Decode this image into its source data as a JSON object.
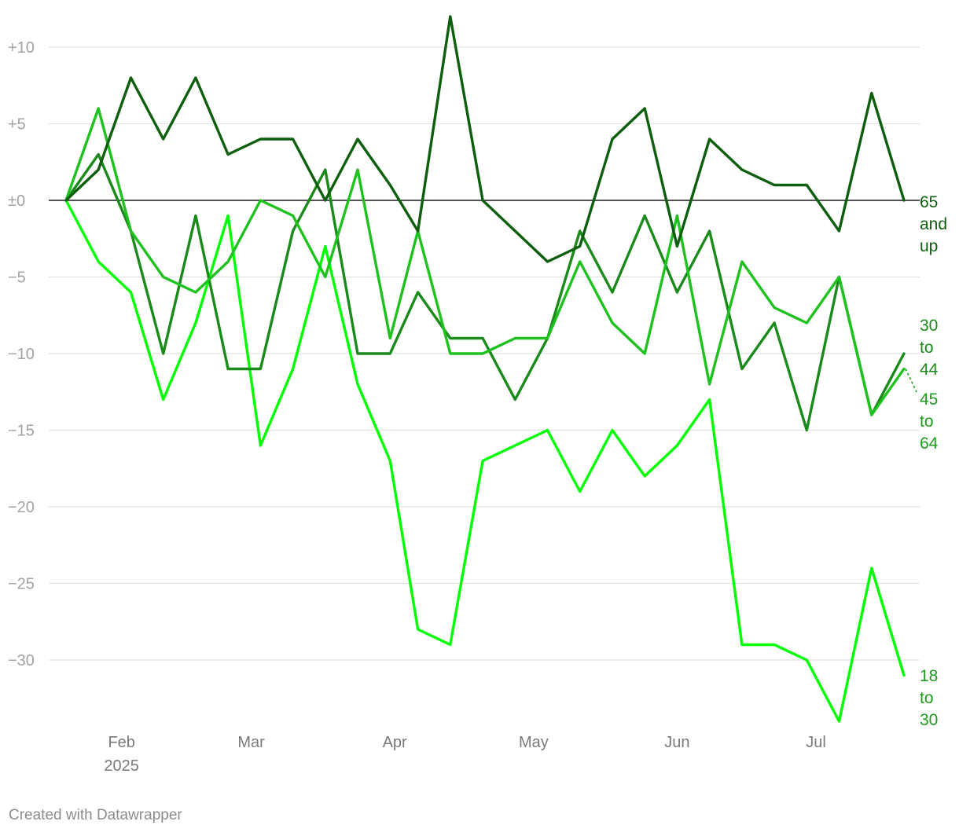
{
  "chart_data": {
    "type": "line",
    "title": "",
    "xlabel": "",
    "ylabel": "",
    "ylim": [
      -34,
      12
    ],
    "y_ticks": [
      {
        "value": 10,
        "label": "+10"
      },
      {
        "value": 5,
        "label": "+5"
      },
      {
        "value": 0,
        "label": "±0"
      },
      {
        "value": -5,
        "label": "−5"
      },
      {
        "value": -10,
        "label": "−10"
      },
      {
        "value": -15,
        "label": "−15"
      },
      {
        "value": -20,
        "label": "−20"
      },
      {
        "value": -25,
        "label": "−25"
      },
      {
        "value": -30,
        "label": "−30"
      }
    ],
    "x_ticks": [
      {
        "date": "2025-02-01",
        "label": "Feb",
        "sublabel": "2025"
      },
      {
        "date": "2025-03-01",
        "label": "Mar",
        "sublabel": ""
      },
      {
        "date": "2025-04-01",
        "label": "Apr",
        "sublabel": ""
      },
      {
        "date": "2025-05-01",
        "label": "May",
        "sublabel": ""
      },
      {
        "date": "2025-06-01",
        "label": "Jun",
        "sublabel": ""
      },
      {
        "date": "2025-07-01",
        "label": "Jul",
        "sublabel": ""
      }
    ],
    "xlim": [
      "2025-01-20",
      "2025-07-20"
    ],
    "x": [
      "2025-01-20",
      "2025-01-27",
      "2025-02-03",
      "2025-02-10",
      "2025-02-17",
      "2025-02-24",
      "2025-03-03",
      "2025-03-10",
      "2025-03-17",
      "2025-03-24",
      "2025-03-31",
      "2025-04-06",
      "2025-04-13",
      "2025-04-20",
      "2025-04-27",
      "2025-05-04",
      "2025-05-11",
      "2025-05-18",
      "2025-05-25",
      "2025-06-01",
      "2025-06-08",
      "2025-06-15",
      "2025-06-22",
      "2025-06-29",
      "2025-07-06",
      "2025-07-13",
      "2025-07-20"
    ],
    "series": [
      {
        "name": "18 to 30",
        "color": "#00ff00",
        "values": [
          0,
          -4,
          -6,
          -13,
          -8,
          -1,
          -16,
          -11,
          -3,
          -12,
          -17,
          -28,
          -29,
          -17,
          -16,
          -15,
          -19,
          -15,
          -18,
          -16,
          -13,
          -29,
          -29,
          -30,
          -34,
          -24,
          -31
        ]
      },
      {
        "name": "30 to 44",
        "color": "#1a8a1a",
        "values": [
          0,
          3,
          -2,
          -10,
          -1,
          -11,
          -11,
          -2,
          2,
          -10,
          -10,
          -6,
          -9,
          -9,
          -13,
          -9,
          -2,
          -6,
          -1,
          -6,
          -2,
          -11,
          -8,
          -15,
          -5,
          -14,
          -10
        ]
      },
      {
        "name": "45 to 64",
        "color": "#1ec21e",
        "values": [
          0,
          6,
          -2,
          -5,
          -6,
          -4,
          0,
          -1,
          -5,
          2,
          -9,
          -2,
          -10,
          -10,
          -9,
          -9,
          -4,
          -8,
          -10,
          -1,
          -12,
          -4,
          -7,
          -8,
          -5,
          -14,
          -11
        ]
      },
      {
        "name": "65 and up",
        "color": "#0d5e0d",
        "values": [
          0,
          2,
          8,
          4,
          8,
          3,
          4,
          4,
          0,
          4,
          1,
          -2,
          12,
          0,
          -2,
          -4,
          -3,
          4,
          6,
          -3,
          4,
          2,
          1,
          1,
          -2,
          7,
          0
        ]
      }
    ],
    "label_colors": {
      "18 to 30": "#1a9f1a",
      "30 to 44": "#1a8a1a",
      "45 to 64": "#1a9f1a",
      "65 and up": "#0d5e0d"
    },
    "grid": true,
    "legend": "direct labels at right end"
  },
  "series_label_lines": {
    "18 to 30": [
      "18",
      "to",
      "30"
    ],
    "30 to 44": [
      "30",
      "to",
      "44"
    ],
    "45 to 64": [
      "45",
      "to",
      "64"
    ],
    "65 and up": [
      "65",
      "and",
      "up"
    ]
  },
  "footer": {
    "credit": "Created with Datawrapper"
  }
}
